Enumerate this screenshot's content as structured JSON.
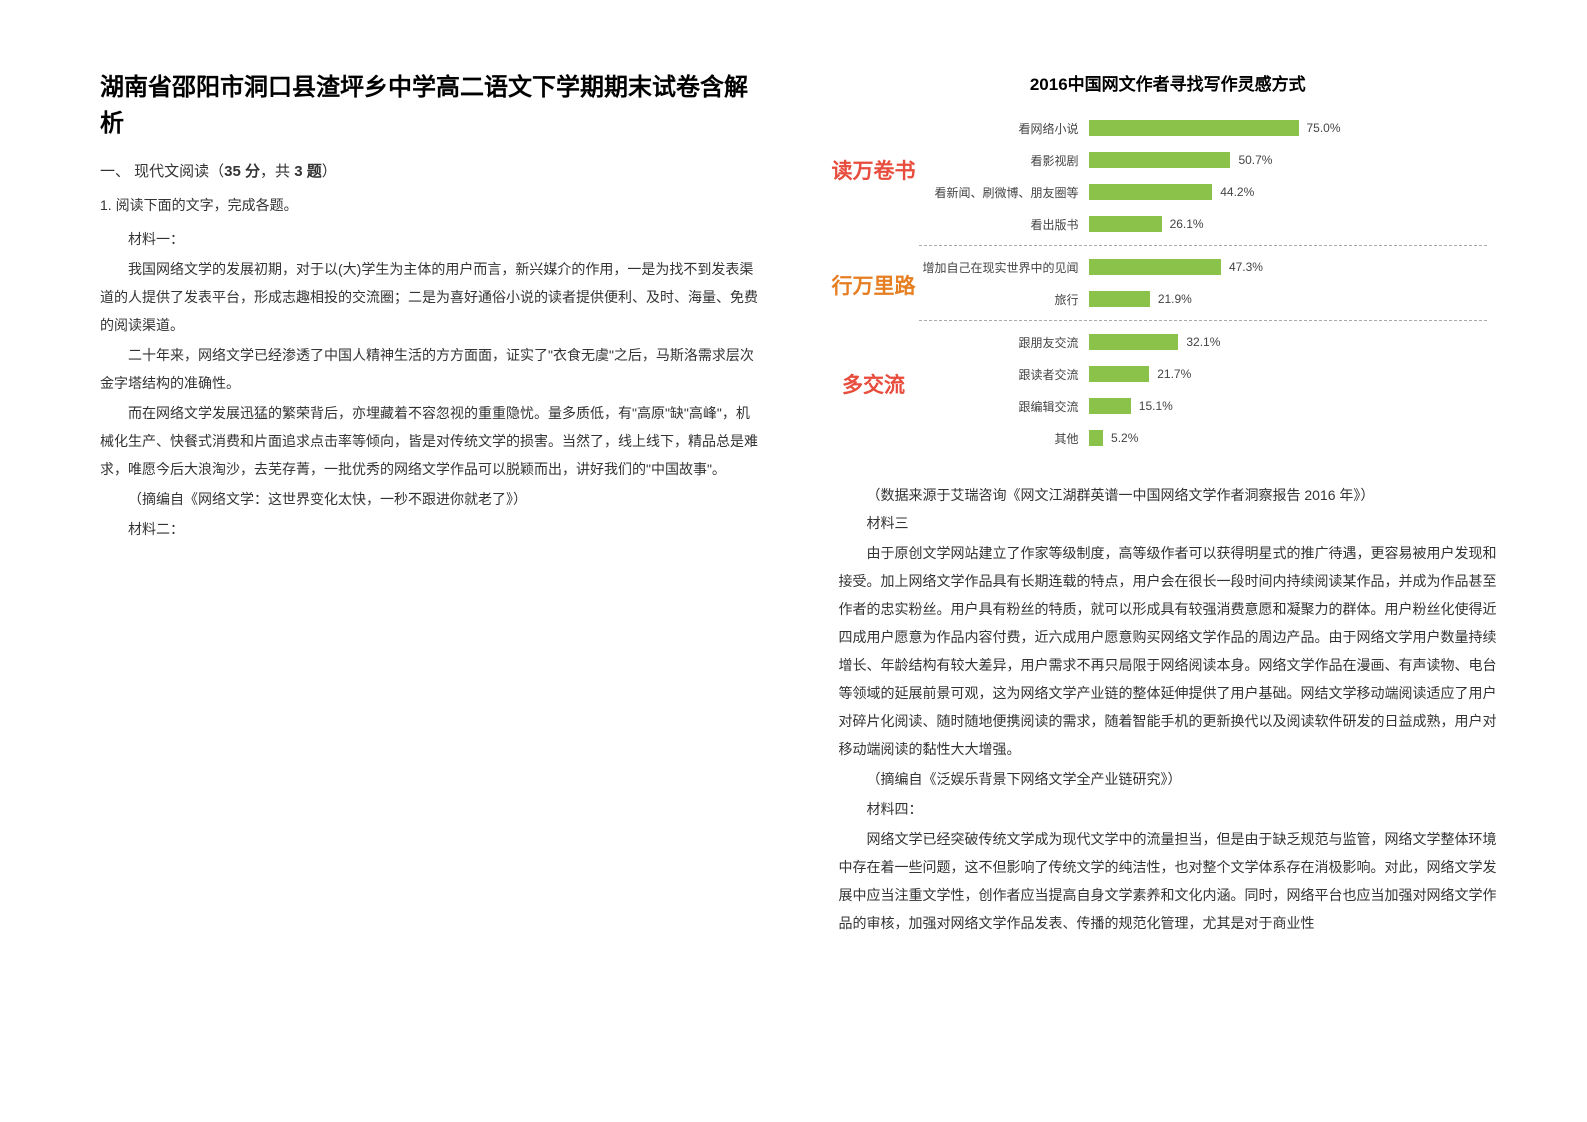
{
  "doc": {
    "title": "湖南省邵阳市洞口县渣坪乡中学高二语文下学期期末试卷含解析",
    "section_heading_prefix": "一、 现代文阅读（",
    "section_heading_score": "35 分",
    "section_heading_mid": "，共 ",
    "section_heading_count": "3 题",
    "section_heading_suffix": "）",
    "q1_label": "1. 阅读下面的文字，完成各题。",
    "mat1_label": "材料一：",
    "mat1_p1": "我国网络文学的发展初期，对于以(大)学生为主体的用户而言，新兴媒介的作用，一是为找不到发表渠道的人提供了发表平台，形成志趣相投的交流圈；二是为喜好通俗小说的读者提供便利、及时、海量、免费的阅读渠道。",
    "mat1_p2": "二十年来，网络文学已经渗透了中国人精神生活的方方面面，证实了\"衣食无虞\"之后，马斯洛需求层次金字塔结构的准确性。",
    "mat1_p3": "而在网络文学发展迅猛的繁荣背后，亦埋藏着不容忽视的重重隐忧。量多质低，有\"高原\"缺\"高峰\"，机械化生产、快餐式消费和片面追求点击率等倾向，皆是对传统文学的损害。当然了，线上线下，精品总是难求，唯愿今后大浪淘沙，去芜存菁，一批优秀的网络文学作品可以脱颖而出，讲好我们的\"中国故事\"。",
    "mat1_source": "（摘编自《网络文学：这世界变化太快，一秒不跟进你就老了》）",
    "mat2_label": "材料二：",
    "chart_title": "2016中国网文作者寻找写作灵感方式",
    "chart_source": "（数据来源于艾瑞咨询《网文江湖群英谱一中国网络文学作者洞察报告 2016 年》）",
    "mat3_label": "材料三",
    "mat3_p1": "由于原创文学网站建立了作家等级制度，高等级作者可以获得明星式的推广待遇，更容易被用户发现和接受。加上网络文学作品具有长期连载的特点，用户会在很长一段时间内持续阅读某作品，并成为作品甚至作者的忠实粉丝。用户具有粉丝的特质，就可以形成具有较强消费意愿和凝聚力的群体。用户粉丝化使得近四成用户愿意为作品内容付费，近六成用户愿意购买网络文学作品的周边产品。由于网络文学用户数量持续增长、年龄结构有较大差异，用户需求不再只局限于网络阅读本身。网络文学作品在漫画、有声读物、电台等领域的延展前景可观，这为网络文学产业链的整体延伸提供了用户基础。网结文学移动端阅读适应了用户对碎片化阅读、随时随地便携阅读的需求，随着智能手机的更新换代以及阅读软件研发的日益成熟，用户对移动端阅读的黏性大大增强。",
    "mat3_source": "（摘编自《泛娱乐背景下网络文学全产业链研究》）",
    "mat4_label": "材料四：",
    "mat4_p1": "网络文学已经突破传统文学成为现代文学中的流量担当，但是由于缺乏规范与监管，网络文学整体环境中存在着一些问题，这不但影响了传统文学的纯洁性，也对整个文学体系存在消极影响。对此，网络文学发展中应当注重文学性，创作者应当提高自身文学素养和文化内涵。同时，网络平台也应当加强对网络文学作品的审核，加强对网络文学作品发表、传播的规范化管理，尤其是对于商业性"
  },
  "chart": {
    "bar_color": "#8bc34a",
    "max_value": 100,
    "groups": [
      {
        "label": "读万卷书",
        "label_class": "g1",
        "rows": [
          {
            "cat": "看网络小说",
            "val": 75.0,
            "val_label": "75.0%"
          },
          {
            "cat": "看影视剧",
            "val": 50.7,
            "val_label": "50.7%"
          },
          {
            "cat": "看新闻、刷微博、朋友圈等",
            "val": 44.2,
            "val_label": "44.2%"
          },
          {
            "cat": "看出版书",
            "val": 26.1,
            "val_label": "26.1%"
          }
        ]
      },
      {
        "label": "行万里路",
        "label_class": "g2",
        "rows": [
          {
            "cat": "增加自己在现实世界中的见闻",
            "val": 47.3,
            "val_label": "47.3%"
          },
          {
            "cat": "旅行",
            "val": 21.9,
            "val_label": "21.9%"
          }
        ]
      },
      {
        "label": "多交流",
        "label_class": "g3",
        "rows": [
          {
            "cat": "跟朋友交流",
            "val": 32.1,
            "val_label": "32.1%"
          },
          {
            "cat": "跟读者交流",
            "val": 21.7,
            "val_label": "21.7%"
          },
          {
            "cat": "跟编辑交流",
            "val": 15.1,
            "val_label": "15.1%"
          },
          {
            "cat": "其他",
            "val": 5.2,
            "val_label": "5.2%"
          }
        ]
      }
    ]
  }
}
